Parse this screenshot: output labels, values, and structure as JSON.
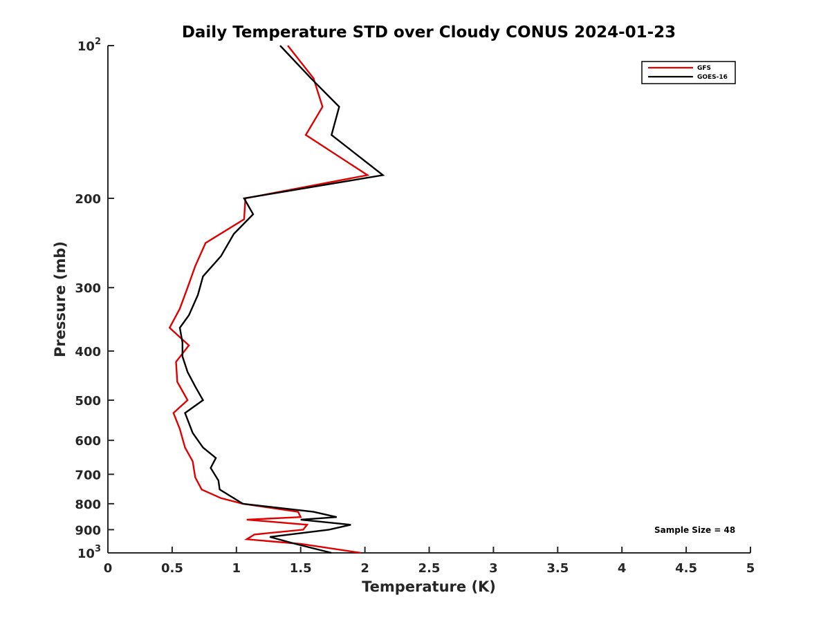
{
  "chart_data": {
    "type": "line",
    "title": "Daily Temperature STD over Cloudy CONUS 2024-01-23",
    "xlabel": "Temperature (K)",
    "ylabel": "Pressure (mb)",
    "xlim": [
      0,
      5
    ],
    "ylim": [
      100,
      1000
    ],
    "y_scale": "log",
    "y_reversed": true,
    "grid": false,
    "legend_position": "top-right",
    "x_ticks": [
      {
        "value": 0,
        "label": "0"
      },
      {
        "value": 0.5,
        "label": "0.5"
      },
      {
        "value": 1,
        "label": "1"
      },
      {
        "value": 1.5,
        "label": "1.5"
      },
      {
        "value": 2,
        "label": "2"
      },
      {
        "value": 2.5,
        "label": "2.5"
      },
      {
        "value": 3,
        "label": "3"
      },
      {
        "value": 3.5,
        "label": "3.5"
      },
      {
        "value": 4,
        "label": "4"
      },
      {
        "value": 4.5,
        "label": "4.5"
      },
      {
        "value": 5,
        "label": "5"
      }
    ],
    "y_ticks": [
      {
        "value": 100,
        "base": "10",
        "exp": "2"
      },
      {
        "value": 200,
        "label": "200"
      },
      {
        "value": 300,
        "label": "300"
      },
      {
        "value": 400,
        "label": "400"
      },
      {
        "value": 500,
        "label": "500"
      },
      {
        "value": 600,
        "label": "600"
      },
      {
        "value": 700,
        "label": "700"
      },
      {
        "value": 800,
        "label": "800"
      },
      {
        "value": 900,
        "label": "900"
      },
      {
        "value": 1000,
        "base": "10",
        "exp": "3"
      }
    ],
    "annotation": "Sample Size = 48",
    "series": [
      {
        "name": "GFS",
        "color": "#e00000",
        "points": [
          [
            1.4,
            100
          ],
          [
            1.6,
            116
          ],
          [
            1.67,
            132
          ],
          [
            1.54,
            150
          ],
          [
            2.02,
            180
          ],
          [
            1.07,
            200
          ],
          [
            1.06,
            220
          ],
          [
            0.76,
            245
          ],
          [
            0.68,
            272
          ],
          [
            0.62,
            300
          ],
          [
            0.56,
            330
          ],
          [
            0.48,
            360
          ],
          [
            0.63,
            390
          ],
          [
            0.53,
            420
          ],
          [
            0.54,
            460
          ],
          [
            0.62,
            500
          ],
          [
            0.51,
            530
          ],
          [
            0.56,
            570
          ],
          [
            0.6,
            620
          ],
          [
            0.66,
            660
          ],
          [
            0.68,
            710
          ],
          [
            0.73,
            750
          ],
          [
            0.88,
            780
          ],
          [
            1.05,
            800
          ],
          [
            1.48,
            830
          ],
          [
            1.5,
            850
          ],
          [
            1.08,
            860
          ],
          [
            1.55,
            880
          ],
          [
            1.52,
            900
          ],
          [
            1.14,
            920
          ],
          [
            1.08,
            940
          ],
          [
            1.5,
            960
          ],
          [
            1.97,
            1000
          ]
        ]
      },
      {
        "name": "GOES-16",
        "color": "#000000",
        "points": [
          [
            1.34,
            100
          ],
          [
            1.58,
            116
          ],
          [
            1.8,
            132
          ],
          [
            1.74,
            150
          ],
          [
            2.14,
            180
          ],
          [
            1.06,
            200
          ],
          [
            1.13,
            215
          ],
          [
            0.98,
            235
          ],
          [
            0.88,
            260
          ],
          [
            0.74,
            285
          ],
          [
            0.7,
            310
          ],
          [
            0.63,
            340
          ],
          [
            0.56,
            360
          ],
          [
            0.58,
            385
          ],
          [
            0.58,
            410
          ],
          [
            0.62,
            440
          ],
          [
            0.68,
            470
          ],
          [
            0.74,
            500
          ],
          [
            0.6,
            530
          ],
          [
            0.66,
            580
          ],
          [
            0.74,
            620
          ],
          [
            0.84,
            650
          ],
          [
            0.8,
            680
          ],
          [
            0.86,
            720
          ],
          [
            0.87,
            750
          ],
          [
            1.05,
            800
          ],
          [
            1.6,
            830
          ],
          [
            1.78,
            850
          ],
          [
            1.5,
            860
          ],
          [
            1.89,
            880
          ],
          [
            1.72,
            900
          ],
          [
            1.26,
            930
          ],
          [
            1.46,
            960
          ],
          [
            1.74,
            1000
          ]
        ]
      }
    ]
  }
}
